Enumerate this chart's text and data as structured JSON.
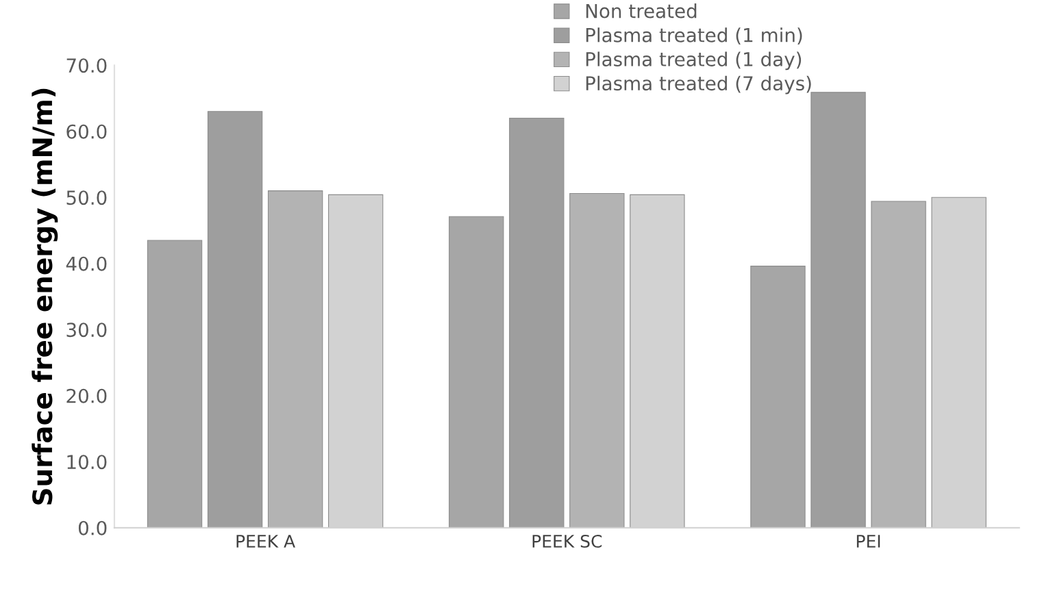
{
  "chart_data": {
    "type": "bar",
    "ylabel": "Surface free energy (mN/m)",
    "categories": [
      "PEEK A",
      "PEEK SC",
      "PEI"
    ],
    "series": [
      {
        "name": "Non treated",
        "color": "#a6a6a6",
        "values": [
          43.5,
          47.1,
          39.6
        ]
      },
      {
        "name": "Plasma treated (1 min)",
        "color": "#9e9e9e",
        "values": [
          63.0,
          62.0,
          65.9
        ]
      },
      {
        "name": "Plasma treated (1 day)",
        "color": "#b3b3b3",
        "values": [
          51.0,
          50.6,
          49.4
        ]
      },
      {
        "name": "Plasma treated (7 days)",
        "color": "#d2d2d2",
        "values": [
          50.4,
          50.4,
          50.0
        ]
      }
    ],
    "ylim": [
      0,
      70
    ],
    "yticks": [
      {
        "value": 0,
        "label": "0.0"
      },
      {
        "value": 10,
        "label": "10.0"
      },
      {
        "value": 20,
        "label": "20.0"
      },
      {
        "value": 30,
        "label": "30.0"
      },
      {
        "value": 40,
        "label": "40.0"
      },
      {
        "value": 50,
        "label": "50.0"
      },
      {
        "value": 60,
        "label": "60.0"
      },
      {
        "value": 70,
        "label": "70.0"
      }
    ],
    "grid": false,
    "legend": "top right"
  }
}
